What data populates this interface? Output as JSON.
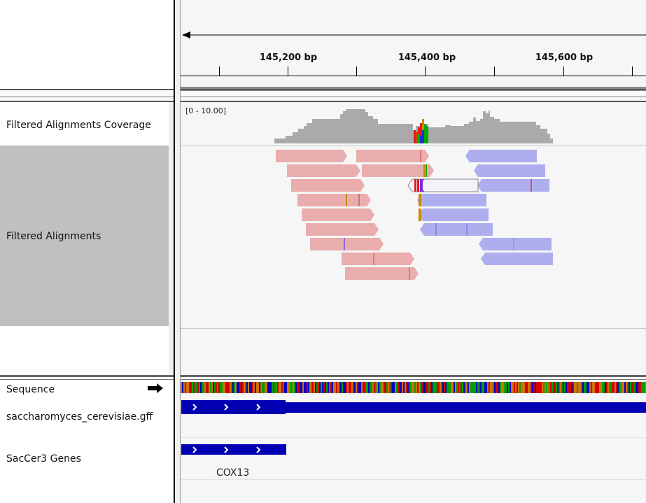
{
  "ruler": {
    "ticks": [
      "145,200 bp",
      "145,400 bp",
      "145,600 bp"
    ]
  },
  "tracks": {
    "coverage_name": "Filtered Alignments Coverage",
    "coverage_range": "[0 - 10.00]",
    "alignments_name": "Filtered Alignments",
    "sequence_name": "Sequence",
    "gff_name": "saccharomyces_cerevisiae.gff",
    "genes_name": "SacCer3 Genes",
    "gene_label": "COX13"
  },
  "colors": {
    "forward_read": "#e9adad",
    "reverse_read": "#aeaeee",
    "coverage": "#aaaaaa",
    "gene": "#0000b2",
    "selected_panel": "#c0c0c0"
  }
}
